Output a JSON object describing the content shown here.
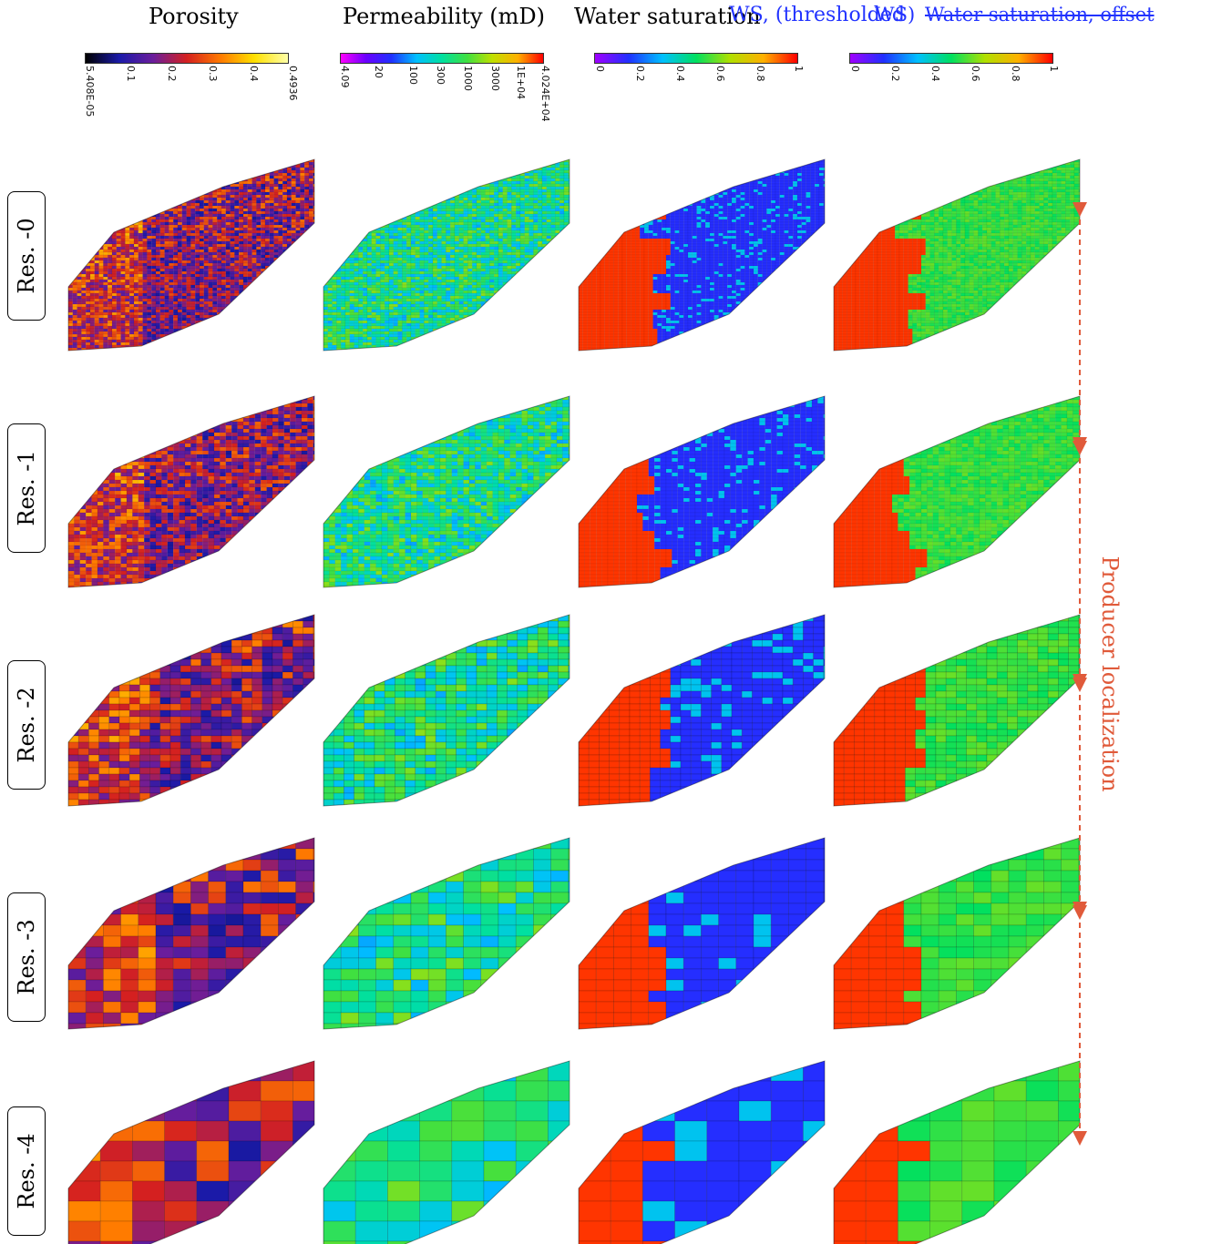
{
  "columns": [
    {
      "title": "Porosity",
      "colormap": "porosity",
      "ticks": [
        "5.408E-05",
        "0.1",
        "0.2",
        "0.3",
        "0.4",
        "0.4936"
      ]
    },
    {
      "title": "Permeability (mD)",
      "colormap": "permeability",
      "ticks": [
        "4.09",
        "20",
        "100",
        "300",
        "1000",
        "3000",
        "1E+04",
        "4.024E+04"
      ]
    },
    {
      "title": "Water saturation",
      "colormap": "saturation",
      "ticks": [
        "0",
        "0.2",
        "0.4",
        "0.6",
        "0.8",
        "1"
      ]
    },
    {
      "title": "",
      "colormap": "saturation",
      "ticks": [
        "0",
        "0.2",
        "0.4",
        "0.6",
        "0.8",
        "1"
      ]
    }
  ],
  "overlay_titles": {
    "ws_thresholded": "WS, (thresholded",
    "ws": "WS)",
    "offset": "Water saturation, offset"
  },
  "rows": [
    {
      "label": "Res. -0"
    },
    {
      "label": "Res. -1"
    },
    {
      "label": "Res. -2"
    },
    {
      "label": "Res. -3"
    },
    {
      "label": "Res. -4"
    }
  ],
  "annotation": {
    "label": "Producer localization",
    "color": "#e05a3a"
  },
  "colors": {
    "porosity": [
      "#000000",
      "#1a1aa8",
      "#6a1d9c",
      "#d42020",
      "#ff7a00",
      "#ffe000",
      "#ffffa8"
    ],
    "permeability": [
      "#ff00ff",
      "#6a00ff",
      "#2030ff",
      "#00c0ff",
      "#00e0a0",
      "#40e040",
      "#c0e000",
      "#ffb000",
      "#ff0000"
    ],
    "saturation": [
      "#a000ff",
      "#2030ff",
      "#00c0ff",
      "#00e060",
      "#b0e000",
      "#ffb000",
      "#ff0000"
    ]
  }
}
